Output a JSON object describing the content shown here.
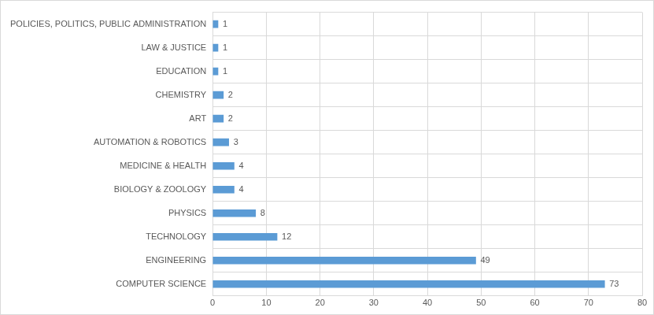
{
  "chart_data": {
    "type": "bar",
    "orientation": "horizontal",
    "categories": [
      "POLICIES, POLITICS, PUBLIC ADMINISTRATION",
      "LAW & JUSTICE",
      "EDUCATION",
      "CHEMISTRY",
      "ART",
      "AUTOMATION & ROBOTICS",
      "MEDICINE & HEALTH",
      "BIOLOGY & ZOOLOGY",
      "PHYSICS",
      "TECHNOLOGY",
      "ENGINEERING",
      "COMPUTER SCIENCE"
    ],
    "values": [
      1,
      1,
      1,
      2,
      2,
      3,
      4,
      4,
      8,
      12,
      49,
      73
    ],
    "color": "#5b9bd5",
    "xlim": [
      0,
      80
    ],
    "xticks": [
      0,
      10,
      20,
      30,
      40,
      50,
      60,
      70,
      80
    ],
    "grid": true,
    "data_labels": true
  }
}
